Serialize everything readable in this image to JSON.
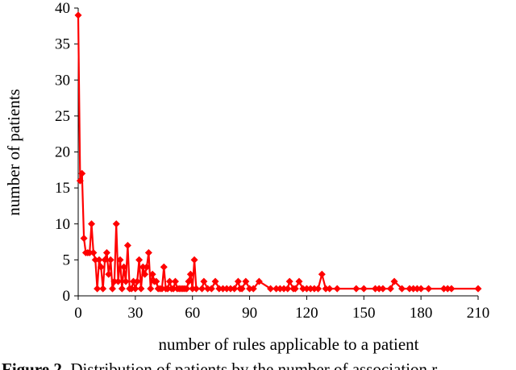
{
  "chart_data": {
    "type": "line",
    "title": "",
    "xlabel": "number of rules applicable to a patient",
    "ylabel": "number of patients",
    "xlim": [
      0,
      210
    ],
    "ylim": [
      0,
      40
    ],
    "xticks": [
      0,
      30,
      60,
      90,
      120,
      150,
      180,
      210
    ],
    "yticks": [
      0,
      5,
      10,
      15,
      20,
      25,
      30,
      35,
      40
    ],
    "grid": false,
    "legend": "none",
    "line_color": "#ff0000",
    "marker": "diamond",
    "x": [
      0,
      1,
      2,
      3,
      4,
      5,
      6,
      7,
      8,
      9,
      10,
      11,
      12,
      13,
      14,
      15,
      16,
      17,
      18,
      19,
      20,
      21,
      22,
      23,
      24,
      25,
      26,
      27,
      28,
      29,
      30,
      31,
      32,
      33,
      34,
      35,
      36,
      37,
      38,
      39,
      40,
      41,
      42,
      43,
      44,
      45,
      46,
      47,
      48,
      49,
      50,
      51,
      52,
      53,
      54,
      55,
      56,
      57,
      58,
      59,
      60,
      61,
      62,
      65,
      66,
      68,
      70,
      72,
      74,
      76,
      78,
      80,
      82,
      84,
      85,
      86,
      88,
      90,
      92,
      95,
      101,
      104,
      106,
      108,
      110,
      111,
      113,
      114,
      116,
      118,
      120,
      122,
      124,
      126,
      128,
      130,
      132,
      136,
      146,
      150,
      156,
      158,
      160,
      164,
      166,
      170,
      174,
      176,
      178,
      180,
      184,
      192,
      194,
      196,
      210
    ],
    "values": [
      39,
      16,
      17,
      8,
      6,
      6,
      6,
      10,
      6,
      5,
      1,
      5,
      4,
      1,
      5,
      6,
      3,
      5,
      1,
      2,
      10,
      2,
      5,
      1,
      4,
      2,
      7,
      1,
      1,
      2,
      1,
      2,
      5,
      1,
      4,
      3,
      4,
      6,
      1,
      3,
      2,
      2,
      1,
      1,
      1,
      4,
      1,
      1,
      2,
      1,
      1,
      2,
      1,
      1,
      1,
      1,
      1,
      1,
      2,
      3,
      1,
      5,
      1,
      1,
      2,
      1,
      1,
      2,
      1,
      1,
      1,
      1,
      1,
      2,
      1,
      1,
      2,
      1,
      1,
      2,
      1,
      1,
      1,
      1,
      1,
      2,
      1,
      1,
      2,
      1,
      1,
      1,
      1,
      1,
      3,
      1,
      1,
      1,
      1,
      1,
      1,
      1,
      1,
      1,
      2,
      1,
      1,
      1,
      1,
      1,
      1,
      1,
      1,
      1,
      1
    ]
  },
  "caption": {
    "label": "Figure 2.",
    "text": " Distribution of patients by the number of association r"
  }
}
